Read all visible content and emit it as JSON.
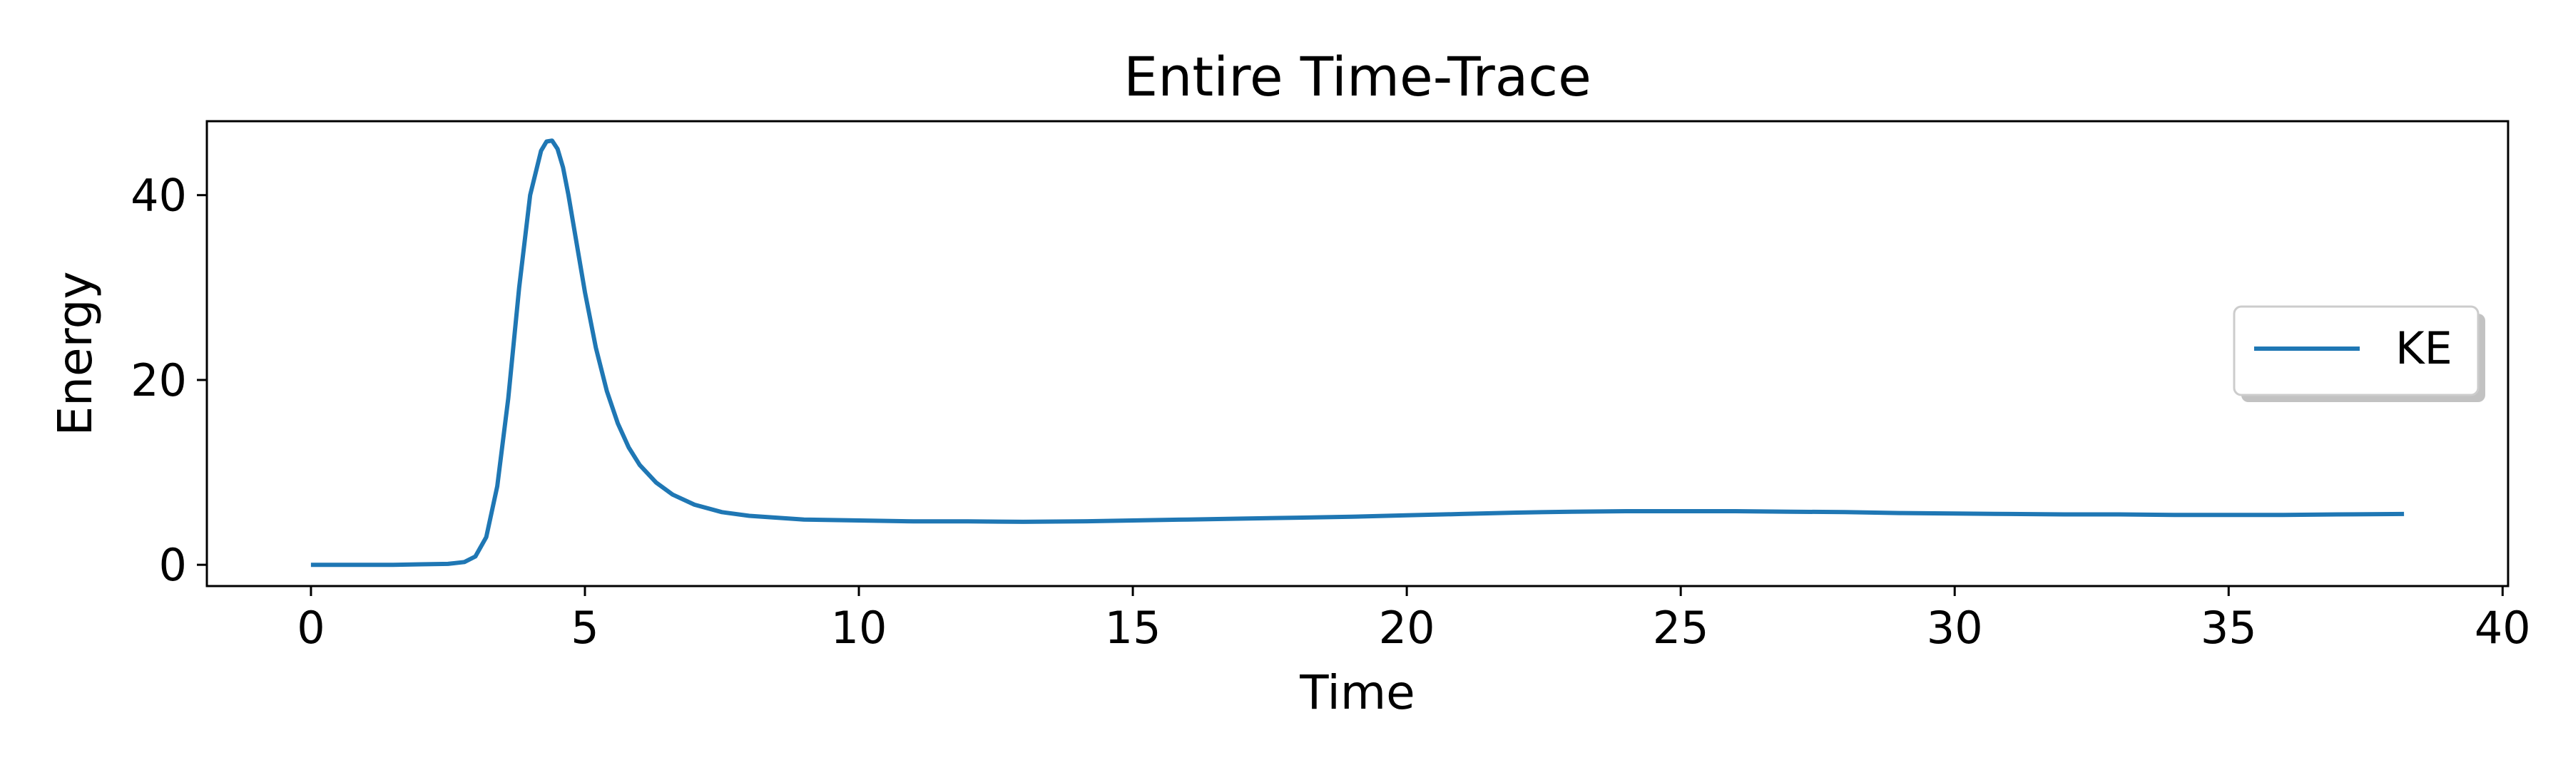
{
  "chart_data": {
    "type": "line",
    "title": "Entire Time-Trace",
    "xlabel": "Time",
    "ylabel": "Energy",
    "xlim": [
      -1.9,
      40.1
    ],
    "ylim": [
      -2.3,
      48.0
    ],
    "xticks": [
      0,
      5,
      10,
      15,
      20,
      25,
      30,
      35,
      40
    ],
    "yticks": [
      0,
      20,
      40
    ],
    "grid": false,
    "legend_position": "right",
    "series": [
      {
        "name": "KE",
        "color": "#1f77b4",
        "x": [
          0,
          0.5,
          1,
          1.5,
          2,
          2.5,
          2.8,
          3.0,
          3.2,
          3.4,
          3.6,
          3.8,
          4.0,
          4.2,
          4.3,
          4.4,
          4.5,
          4.6,
          4.7,
          4.8,
          5.0,
          5.2,
          5.4,
          5.6,
          5.8,
          6.0,
          6.3,
          6.6,
          7.0,
          7.5,
          8.0,
          9.0,
          10,
          11,
          12,
          13,
          14,
          15,
          16,
          17,
          18,
          19,
          20,
          21,
          22,
          23,
          24,
          25,
          26,
          27,
          28,
          29,
          30,
          31,
          32,
          33,
          34,
          35,
          36,
          37,
          38.2
        ],
        "values": [
          0.0,
          0.0,
          0.0,
          0.0,
          0.05,
          0.1,
          0.3,
          0.9,
          3.0,
          8.5,
          18.0,
          30.0,
          40.0,
          44.8,
          45.8,
          45.9,
          45.0,
          43.0,
          40.0,
          36.5,
          29.5,
          23.5,
          18.8,
          15.3,
          12.7,
          10.8,
          8.9,
          7.6,
          6.5,
          5.7,
          5.3,
          4.9,
          4.8,
          4.7,
          4.7,
          4.65,
          4.7,
          4.8,
          4.9,
          5.0,
          5.1,
          5.2,
          5.35,
          5.5,
          5.65,
          5.75,
          5.8,
          5.8,
          5.8,
          5.75,
          5.7,
          5.6,
          5.55,
          5.5,
          5.45,
          5.45,
          5.4,
          5.4,
          5.4,
          5.45,
          5.5
        ]
      }
    ]
  }
}
